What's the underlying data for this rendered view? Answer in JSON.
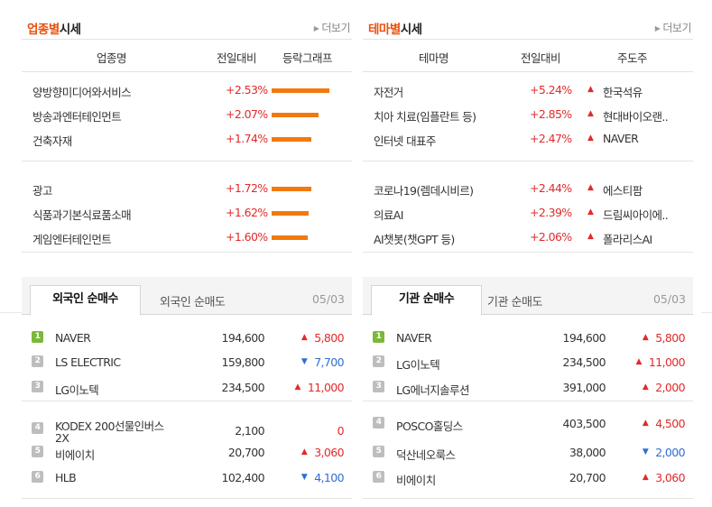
{
  "industry": {
    "title_highlight": "업종별",
    "title_rest": "시세",
    "more": "더보기",
    "headers": [
      "업종명",
      "전일대비",
      "등락그래프"
    ],
    "groups": [
      [
        {
          "name": "양방향미디어와서비스",
          "pct": "+2.53%",
          "bar_ratio": 1.0
        },
        {
          "name": "방송과엔터테인먼트",
          "pct": "+2.07%",
          "bar_ratio": 0.82
        },
        {
          "name": "건축자재",
          "pct": "+1.74%",
          "bar_ratio": 0.69
        }
      ],
      [
        {
          "name": "광고",
          "pct": "+1.72%",
          "bar_ratio": 0.68
        },
        {
          "name": "식품과기본식료품소매",
          "pct": "+1.62%",
          "bar_ratio": 0.64
        },
        {
          "name": "게임엔터테인먼트",
          "pct": "+1.60%",
          "bar_ratio": 0.63
        }
      ]
    ]
  },
  "theme": {
    "title_highlight": "테마별",
    "title_rest": "시세",
    "more": "더보기",
    "headers": [
      "테마명",
      "전일대비",
      "주도주"
    ],
    "groups": [
      [
        {
          "name": "자전거",
          "pct": "+5.24%",
          "leader": "한국석유"
        },
        {
          "name": "치아 치료(임플란트 등)",
          "pct": "+2.85%",
          "leader": "현대바이오랜.."
        },
        {
          "name": "인터넷 대표주",
          "pct": "+2.47%",
          "leader": "NAVER"
        }
      ],
      [
        {
          "name": "코로나19(렘데시비르)",
          "pct": "+2.44%",
          "leader": "에스티팜"
        },
        {
          "name": "의료AI",
          "pct": "+2.39%",
          "leader": "드림씨아이에.."
        },
        {
          "name": "AI챗봇(챗GPT 등)",
          "pct": "+2.06%",
          "leader": "폴라리스AI"
        }
      ]
    ]
  },
  "foreign": {
    "tab_active": "외국인 순매수",
    "tab_inactive": "외국인 순매도",
    "date": "05/03",
    "groups": [
      [
        {
          "rank": "1",
          "name": "NAVER",
          "price": "194,600",
          "dir": "up",
          "change": "5,800"
        },
        {
          "rank": "2",
          "name": "LS ELECTRIC",
          "price": "159,800",
          "dir": "down",
          "change": "7,700"
        },
        {
          "rank": "3",
          "name": "LG이노텍",
          "price": "234,500",
          "dir": "up",
          "change": "11,000"
        }
      ],
      [
        {
          "rank": "4",
          "name": "KODEX 200선물인버스",
          "name2": "2X",
          "price": "2,100",
          "dir": "flat",
          "change": "0"
        },
        {
          "rank": "5",
          "name": "비에이치",
          "price": "20,700",
          "dir": "up",
          "change": "3,060"
        },
        {
          "rank": "6",
          "name": "HLB",
          "price": "102,400",
          "dir": "down",
          "change": "4,100"
        }
      ]
    ]
  },
  "institution": {
    "tab_active": "기관 순매수",
    "tab_inactive": "기관 순매도",
    "date": "05/03",
    "groups": [
      [
        {
          "rank": "1",
          "name": "NAVER",
          "price": "194,600",
          "dir": "up",
          "change": "5,800"
        },
        {
          "rank": "2",
          "name": "LG이노텍",
          "price": "234,500",
          "dir": "up",
          "change": "11,000"
        },
        {
          "rank": "3",
          "name": "LG에너지솔루션",
          "price": "391,000",
          "dir": "up",
          "change": "2,000"
        }
      ],
      [
        {
          "rank": "4",
          "name": "POSCO홀딩스",
          "price": "403,500",
          "dir": "up",
          "change": "4,500"
        },
        {
          "rank": "5",
          "name": "덕산네오룩스",
          "price": "38,000",
          "dir": "down",
          "change": "2,000"
        },
        {
          "rank": "6",
          "name": "비에이치",
          "price": "20,700",
          "dir": "up",
          "change": "3,060"
        }
      ]
    ]
  }
}
